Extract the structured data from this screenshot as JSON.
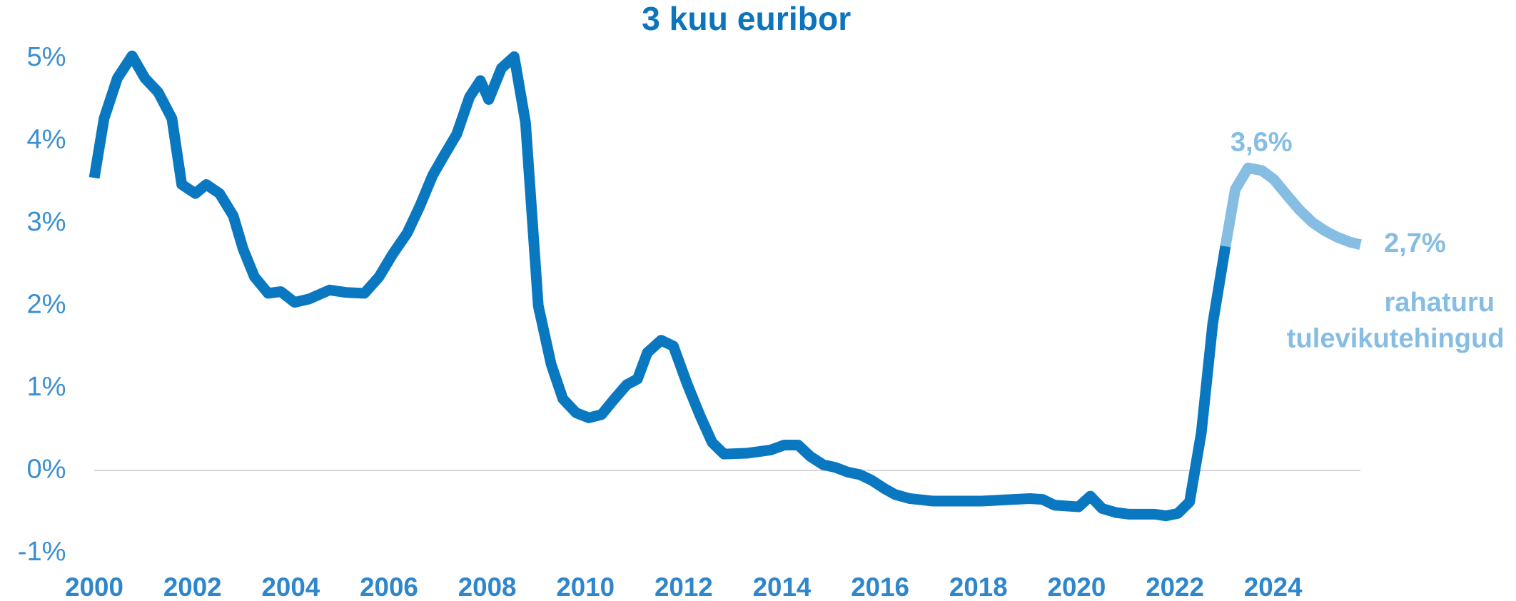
{
  "chart_data": {
    "type": "line",
    "title": "3 kuu euribor",
    "xlim": [
      2000,
      2025.78
    ],
    "xticks": [
      2000,
      2002,
      2004,
      2006,
      2008,
      2010,
      2012,
      2014,
      2016,
      2018,
      2020,
      2022,
      2024
    ],
    "ylim": [
      -1,
      5
    ],
    "yticks": [
      {
        "value": -1,
        "label": "-1%"
      },
      {
        "value": 0,
        "label": "0%"
      },
      {
        "value": 1,
        "label": "1%"
      },
      {
        "value": 2,
        "label": "2%"
      },
      {
        "value": 3,
        "label": "3%"
      },
      {
        "value": 4,
        "label": "4%"
      },
      {
        "value": 5,
        "label": "5%"
      }
    ],
    "series": [
      {
        "color": "#0a78c0",
        "x": [
          2000.0,
          2000.2,
          2000.47,
          2000.77,
          2001.03,
          2001.3,
          2001.58,
          2001.78,
          2002.06,
          2002.28,
          2002.55,
          2002.83,
          2003.03,
          2003.26,
          2003.54,
          2003.8,
          2004.08,
          2004.37,
          2004.79,
          2005.12,
          2005.5,
          2005.8,
          2006.07,
          2006.37,
          2006.63,
          2006.89,
          2007.12,
          2007.38,
          2007.64,
          2007.86,
          2008.03,
          2008.29,
          2008.55,
          2008.78,
          2009.04,
          2009.3,
          2009.54,
          2009.81,
          2010.07,
          2010.33,
          2010.59,
          2010.84,
          2011.06,
          2011.26,
          2011.54,
          2011.79,
          2012.07,
          2012.33,
          2012.58,
          2012.82,
          2013.28,
          2013.77,
          2014.05,
          2014.33,
          2014.58,
          2014.84,
          2015.08,
          2015.35,
          2015.59,
          2015.83,
          2016.09,
          2016.3,
          2016.6,
          2017.08,
          2018.06,
          2019.05,
          2019.31,
          2019.55,
          2020.04,
          2020.28,
          2020.52,
          2020.8,
          2021.07,
          2021.59,
          2021.82,
          2022.06,
          2022.3,
          2022.54,
          2022.77,
          2023.03
        ],
        "values": [
          3.55,
          4.27,
          4.76,
          5.03,
          4.76,
          4.59,
          4.27,
          3.47,
          3.36,
          3.47,
          3.36,
          3.09,
          2.69,
          2.35,
          2.15,
          2.17,
          2.04,
          2.08,
          2.19,
          2.16,
          2.15,
          2.35,
          2.62,
          2.88,
          3.21,
          3.58,
          3.82,
          4.08,
          4.53,
          4.73,
          4.5,
          4.88,
          5.02,
          4.22,
          2.0,
          1.29,
          0.87,
          0.7,
          0.64,
          0.68,
          0.87,
          1.04,
          1.11,
          1.43,
          1.58,
          1.51,
          1.05,
          0.67,
          0.34,
          0.2,
          0.21,
          0.25,
          0.31,
          0.31,
          0.17,
          0.07,
          0.04,
          -0.02,
          -0.05,
          -0.12,
          -0.22,
          -0.29,
          -0.34,
          -0.37,
          -0.37,
          -0.34,
          -0.35,
          -0.42,
          -0.44,
          -0.31,
          -0.46,
          -0.51,
          -0.53,
          -0.53,
          -0.55,
          -0.52,
          -0.38,
          0.46,
          1.78,
          2.72
        ]
      },
      {
        "color": "#86bde3",
        "x": [
          2023.03,
          2023.23,
          2023.49,
          2023.77,
          2024.02,
          2024.28,
          2024.54,
          2024.8,
          2025.05,
          2025.31,
          2025.57,
          2025.78
        ],
        "values": [
          2.72,
          3.41,
          3.67,
          3.64,
          3.53,
          3.34,
          3.16,
          3.01,
          2.91,
          2.83,
          2.77,
          2.74
        ]
      }
    ],
    "annotations": [
      "3,6%",
      "2,7%",
      "rahaturu",
      "tulevikutehingud"
    ]
  }
}
